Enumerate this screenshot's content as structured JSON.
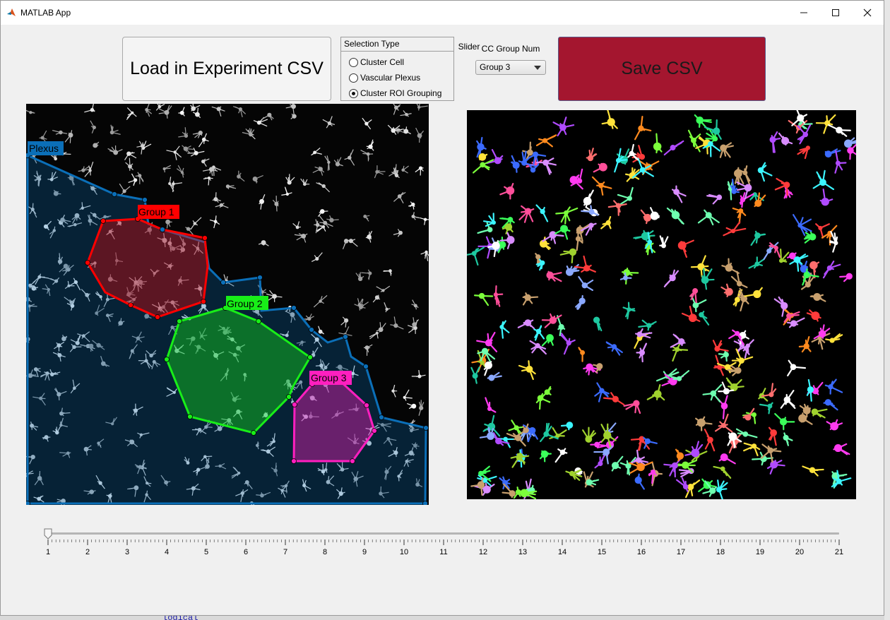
{
  "window": {
    "title": "MATLAB App"
  },
  "controls": {
    "load_label": "Load in Experiment CSV",
    "selection_title": "Selection Type",
    "selection_options": [
      "Cluster Cell",
      "Vascular Plexus",
      "Cluster ROI Grouping"
    ],
    "selected_index": 2,
    "cc_label": "CC Group Num",
    "cc_value": "Group 3",
    "save_label": "Save CSV"
  },
  "left_image": {
    "labels": {
      "plexus": "Plexus",
      "group1": "Group 1",
      "group2": "Group 2",
      "group3": "Group 3"
    },
    "colors": {
      "plexus": "#0b6fb8",
      "group1": "#ff0000",
      "group2": "#18ee18",
      "group3": "#ff1fbf"
    }
  },
  "slider": {
    "label": "Slider",
    "min": 1,
    "max": 21,
    "value": 1,
    "ticks": [
      "1",
      "2",
      "3",
      "4",
      "5",
      "6",
      "7",
      "8",
      "9",
      "10",
      "11",
      "12",
      "13",
      "14",
      "15",
      "16",
      "17",
      "18",
      "19",
      "20",
      "21"
    ]
  },
  "background": {
    "code_fragment": "logical"
  }
}
